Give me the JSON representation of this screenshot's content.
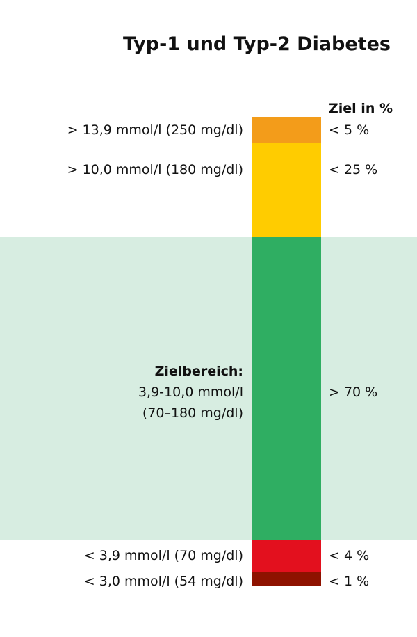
{
  "chart_data": {
    "type": "bar",
    "title": "Typ-1 und Typ-2 Diabetes",
    "value_column_header": "Ziel in %",
    "colors": {
      "target_band_background": "#d7ede1"
    },
    "segments": [
      {
        "label": "> 13,9 mmol/l (250 mg/dl)",
        "target": "< 5 %",
        "color": "#f39c1a"
      },
      {
        "label": "> 10,0 mmol/l (180 mg/dl)",
        "target": "< 25 %",
        "color": "#ffcc00"
      },
      {
        "label_lines": [
          "Zielbereich:",
          "3,9-10,0 mmol/l",
          "(70–180 mg/dl)"
        ],
        "target": "> 70 %",
        "color": "#2fae62"
      },
      {
        "label": "< 3,9 mmol/l (70 mg/dl)",
        "target": "< 4 %",
        "color": "#e3101e"
      },
      {
        "label": "< 3,0 mmol/l (54 mg/dl)",
        "target": "< 1 %",
        "color": "#8e1200"
      }
    ]
  }
}
